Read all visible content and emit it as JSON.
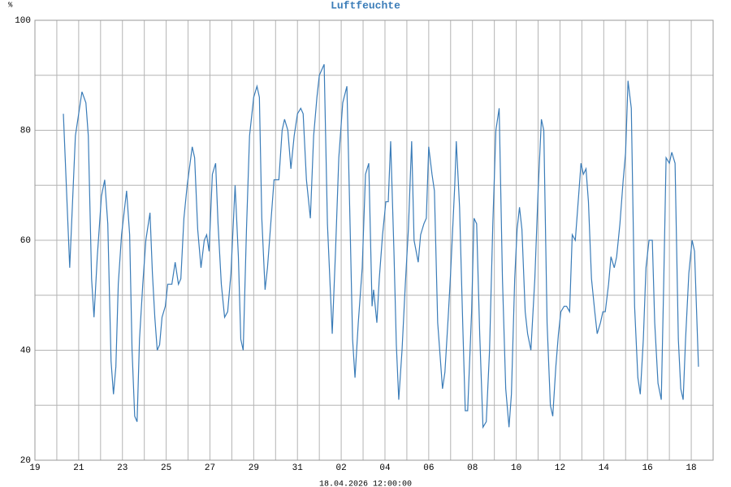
{
  "chart_data": {
    "type": "line",
    "title": "Luftfeuchte",
    "y_unit": "%",
    "footer": "18.04.2026 12:00:00",
    "color": "#3a7cb8",
    "xlim": [
      0,
      31
    ],
    "xticks": [
      {
        "value": 0,
        "label": "19"
      },
      {
        "value": 2,
        "label": "21"
      },
      {
        "value": 4,
        "label": "23"
      },
      {
        "value": 6,
        "label": "25"
      },
      {
        "value": 8,
        "label": "27"
      },
      {
        "value": 10,
        "label": "29"
      },
      {
        "value": 12,
        "label": "31"
      },
      {
        "value": 14,
        "label": "02"
      },
      {
        "value": 16,
        "label": "04"
      },
      {
        "value": 18,
        "label": "06"
      },
      {
        "value": 20,
        "label": "08"
      },
      {
        "value": 22,
        "label": "10"
      },
      {
        "value": 24,
        "label": "12"
      },
      {
        "value": 26,
        "label": "14"
      },
      {
        "value": 28,
        "label": "16"
      },
      {
        "value": 30,
        "label": "18"
      }
    ],
    "x_minor_ticks": [
      1,
      3,
      5,
      7,
      9,
      11,
      13,
      15,
      17,
      19,
      21,
      23,
      25,
      27,
      29
    ],
    "ylim": [
      20,
      100
    ],
    "yticks": [
      20,
      40,
      60,
      80,
      100
    ],
    "y_minor_ticks": [
      30,
      50,
      70,
      90
    ],
    "grid": true,
    "x": [
      1.3,
      1.59,
      1.85,
      2.15,
      2.33,
      2.44,
      2.59,
      2.7,
      2.85,
      3.04,
      3.19,
      3.33,
      3.48,
      3.59,
      3.7,
      3.81,
      3.96,
      4.19,
      4.33,
      4.44,
      4.56,
      4.67,
      4.78,
      4.93,
      5.07,
      5.26,
      5.37,
      5.48,
      5.59,
      5.7,
      5.81,
      5.96,
      6.07,
      6.26,
      6.41,
      6.56,
      6.67,
      6.81,
      6.96,
      7.19,
      7.3,
      7.44,
      7.59,
      7.74,
      7.85,
      7.96,
      8.11,
      8.26,
      8.37,
      8.52,
      8.67,
      8.81,
      8.96,
      9.15,
      9.3,
      9.41,
      9.52,
      9.67,
      9.81,
      10.0,
      10.15,
      10.26,
      10.37,
      10.52,
      10.63,
      10.78,
      10.93,
      11.15,
      11.3,
      11.41,
      11.56,
      11.7,
      11.85,
      12.0,
      12.15,
      12.26,
      12.41,
      12.59,
      12.74,
      12.89,
      13.0,
      13.22,
      13.37,
      13.59,
      13.74,
      13.89,
      14.07,
      14.26,
      14.41,
      14.52,
      14.63,
      14.78,
      14.96,
      15.11,
      15.26,
      15.41,
      15.48,
      15.63,
      15.74,
      15.89,
      16.04,
      16.15,
      16.26,
      16.41,
      16.52,
      16.63,
      16.78,
      16.93,
      17.07,
      17.22,
      17.33,
      17.52,
      17.63,
      17.78,
      17.89,
      18.0,
      18.15,
      18.26,
      18.41,
      18.52,
      18.63,
      18.74,
      18.89,
      19.0,
      19.19,
      19.26,
      19.41,
      19.56,
      19.67,
      19.78,
      19.96,
      20.07,
      20.19,
      20.33,
      20.48,
      20.63,
      20.78,
      20.93,
      21.07,
      21.22,
      21.37,
      21.52,
      21.67,
      21.78,
      21.93,
      22.04,
      22.15,
      22.26,
      22.41,
      22.52,
      22.67,
      22.85,
      23.0,
      23.15,
      23.26,
      23.41,
      23.56,
      23.67,
      23.81,
      23.93,
      24.04,
      24.19,
      24.3,
      24.44,
      24.56,
      24.7,
      24.85,
      24.96,
      25.07,
      25.19,
      25.3,
      25.44,
      25.59,
      25.7,
      25.85,
      25.96,
      26.07,
      26.22,
      26.33,
      26.48,
      26.59,
      26.74,
      26.89,
      27.0,
      27.11,
      27.26,
      27.41,
      27.56,
      27.67,
      27.81,
      27.93,
      28.07,
      28.22,
      28.33,
      28.48,
      28.63,
      28.74,
      28.85,
      29.0,
      29.11,
      29.26,
      29.41,
      29.52,
      29.63,
      29.74,
      29.89,
      30.04,
      30.15,
      30.33
    ],
    "values": [
      83,
      55,
      79,
      87,
      85,
      79,
      53,
      46,
      57,
      68,
      71,
      63,
      38,
      32,
      37,
      52,
      61,
      69,
      61,
      40,
      28,
      27,
      42,
      52,
      60,
      65,
      54,
      46,
      40,
      41,
      46,
      48,
      52,
      52,
      56,
      52,
      53,
      64,
      70,
      77,
      75,
      62,
      55,
      60,
      61,
      58,
      72,
      74,
      63,
      52,
      46,
      47,
      54,
      70,
      57,
      42,
      40,
      62,
      79,
      86,
      88,
      86,
      64,
      51,
      55,
      63,
      71,
      71,
      80,
      82,
      80,
      73,
      79,
      83,
      84,
      83,
      71,
      64,
      79,
      86,
      90,
      92,
      63,
      43,
      58,
      75,
      85,
      88,
      62,
      42,
      35,
      45,
      55,
      72,
      74,
      48,
      51,
      45,
      53,
      61,
      67,
      67,
      78,
      58,
      41,
      31,
      40,
      52,
      62,
      78,
      60,
      56,
      61,
      63,
      64,
      77,
      72,
      69,
      45,
      39,
      33,
      36,
      46,
      54,
      70,
      78,
      66,
      44,
      29,
      29,
      47,
      64,
      63,
      43,
      26,
      27,
      40,
      63,
      80,
      84,
      53,
      33,
      26,
      32,
      53,
      62,
      66,
      62,
      47,
      43,
      40,
      53,
      69,
      82,
      80,
      45,
      30,
      28,
      37,
      43,
      47,
      48,
      48,
      47,
      61,
      60,
      68,
      74,
      72,
      73,
      67,
      53,
      47,
      43,
      45,
      47,
      47,
      52,
      57,
      55,
      57,
      63,
      71,
      76,
      89,
      84,
      48,
      35,
      32,
      42,
      55,
      60,
      60,
      45,
      34,
      31,
      52,
      75,
      74,
      76,
      74,
      42,
      33,
      31,
      42,
      54,
      60,
      58,
      37
    ]
  }
}
